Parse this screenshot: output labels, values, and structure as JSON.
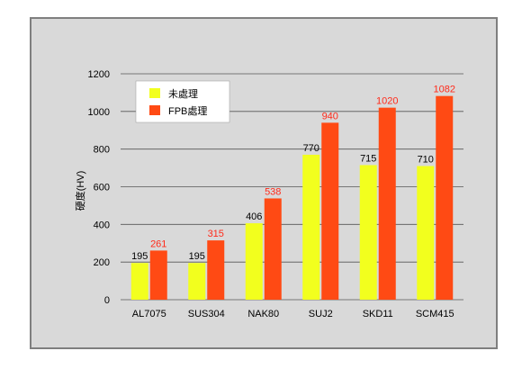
{
  "chart_data": {
    "type": "bar",
    "title": "",
    "xlabel": "",
    "ylabel": "硬度(HV)",
    "ylim": [
      0,
      1200
    ],
    "yticks": [
      0,
      200,
      400,
      600,
      800,
      1000,
      1200
    ],
    "grid": true,
    "legend_position": "top-left",
    "categories": [
      "AL7075",
      "SUS304",
      "NAK80",
      "SUJ2",
      "SKD11",
      "SCM415"
    ],
    "series": [
      {
        "name": "未處理",
        "color": "#f2ff1e",
        "label_color": "#000000",
        "values": [
          195,
          195,
          406,
          770,
          715,
          710
        ]
      },
      {
        "name": "FPB處理",
        "color": "#ff4a14",
        "label_color": "#ff2a1a",
        "values": [
          261,
          315,
          538,
          940,
          1020,
          1082
        ]
      }
    ]
  }
}
